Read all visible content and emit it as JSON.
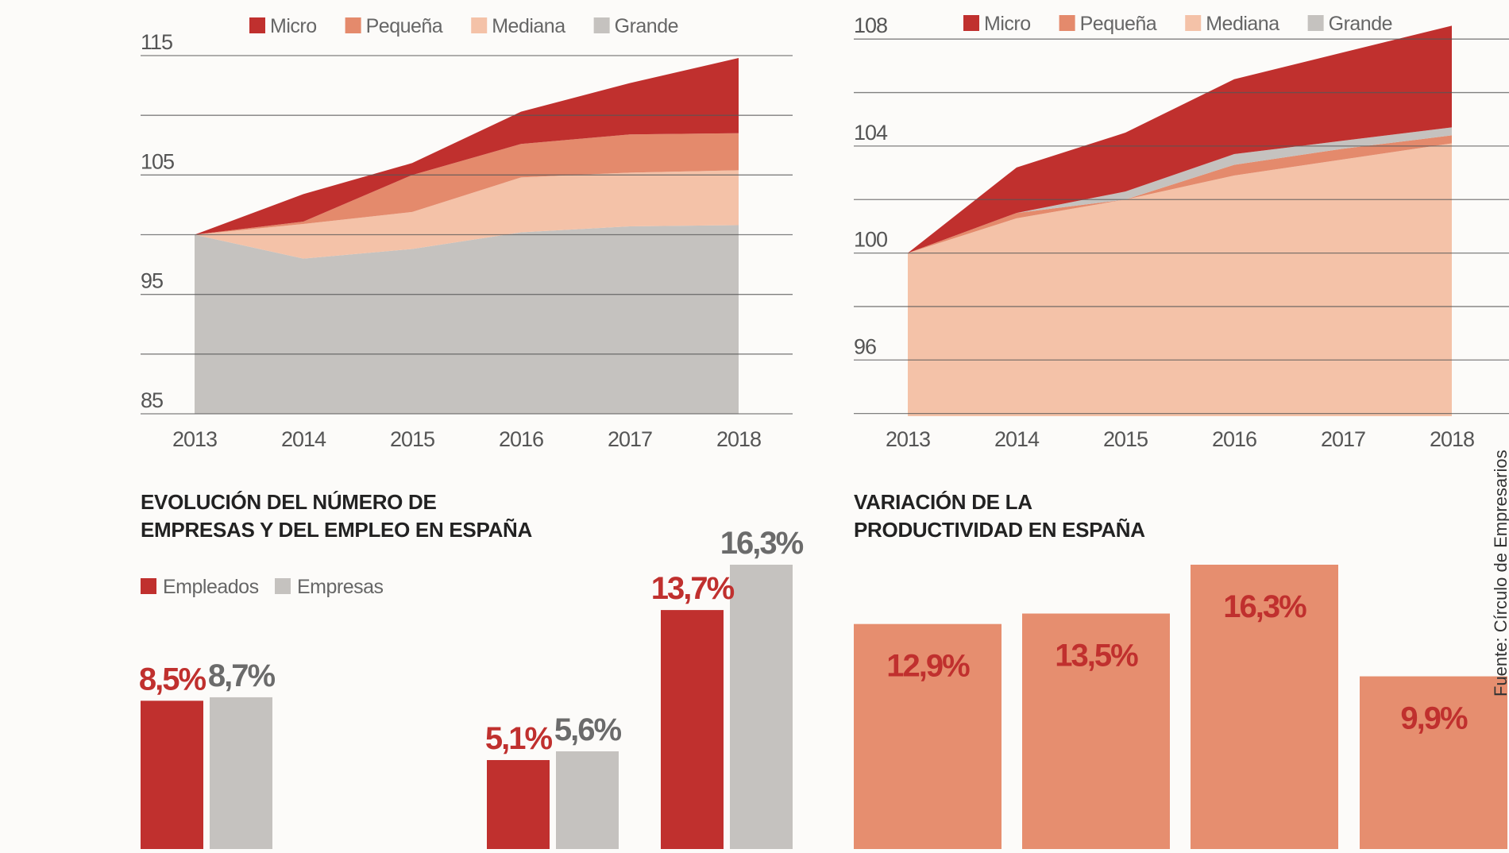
{
  "colors": {
    "micro": "#c0302e",
    "pequena": "#e48a6c",
    "mediana": "#f4c2a8",
    "grande": "#c5c2bf",
    "empleados": "#c0302e",
    "empresas": "#c5c2bf",
    "productividad": "#e68e6f",
    "label_empleados": "#c0302e",
    "label_empresas": "#6b6b6b",
    "label_productividad": "#c0302e",
    "grid": "#555555"
  },
  "source": "Fuente: Círculo de Empresarios",
  "chart_data": [
    {
      "id": "chart-a",
      "type": "area",
      "stacked": true,
      "x": [
        "2013",
        "2014",
        "2015",
        "2016",
        "2017",
        "2018"
      ],
      "ylim": [
        85,
        115
      ],
      "yticks": [
        "85",
        "95",
        "105",
        "115"
      ],
      "gridlines": [
        85,
        90,
        95,
        100,
        105,
        110,
        115
      ],
      "legend": [
        "Micro",
        "Pequeña",
        "Mediana",
        "Grande"
      ],
      "series": [
        {
          "name": "Grande",
          "values": [
            100,
            98,
            98.8,
            100.2,
            100.7,
            100.8
          ]
        },
        {
          "name": "Mediana",
          "values": [
            100,
            100.9,
            101.9,
            104.8,
            105.2,
            105.4
          ]
        },
        {
          "name": "Pequeña",
          "values": [
            100,
            101.1,
            105.0,
            107.6,
            108.4,
            108.5
          ]
        },
        {
          "name": "Micro",
          "values": [
            100,
            103.4,
            106.0,
            110.3,
            112.7,
            114.8
          ]
        }
      ]
    },
    {
      "id": "chart-b",
      "type": "area",
      "stacked": true,
      "x": [
        "2013",
        "2014",
        "2015",
        "2016",
        "2017",
        "2018"
      ],
      "ylim": [
        93.9,
        108.6
      ],
      "yticks": [
        "96",
        "100",
        "104",
        "108"
      ],
      "gridlines": [
        94,
        96,
        98,
        100,
        102,
        104,
        106,
        108
      ],
      "legend": [
        "Micro",
        "Pequeña",
        "Mediana",
        "Grande"
      ],
      "series": [
        {
          "name": "Mediana",
          "values": [
            100,
            101.3,
            102.0,
            102.9,
            103.5,
            104.1
          ]
        },
        {
          "name": "Pequeña",
          "values": [
            100,
            101.5,
            102.0,
            103.3,
            103.9,
            104.4
          ]
        },
        {
          "name": "Grande",
          "values": [
            100,
            101.5,
            102.3,
            103.7,
            104.2,
            104.7
          ]
        },
        {
          "name": "Micro",
          "values": [
            100,
            103.2,
            104.5,
            106.5,
            107.5,
            108.5
          ]
        }
      ]
    },
    {
      "id": "chart-c",
      "type": "bar",
      "title": [
        "EVOLUCIÓN DEL NÚMERO DE",
        "EMPRESAS Y DEL EMPLEO EN ESPAÑA"
      ],
      "legend": [
        "Empleados",
        "Empresas"
      ],
      "ylim": [
        0,
        16.3
      ],
      "groups": [
        {
          "empleados": {
            "value": 8.5,
            "label": "8,5%"
          },
          "empresas": {
            "value": 8.7,
            "label": "8,7%"
          }
        },
        {
          "empleados": {
            "value": 5.1,
            "label": "5,1%"
          },
          "empresas": {
            "value": 5.6,
            "label": "5,6%"
          }
        },
        {
          "empleados": {
            "value": 13.7,
            "label": "13,7%"
          },
          "empresas": {
            "value": 16.3,
            "label": "16,3%"
          }
        }
      ]
    },
    {
      "id": "chart-d",
      "type": "bar",
      "title": [
        "VARIACIÓN DE LA",
        "PRODUCTIVIDAD EN ESPAÑA"
      ],
      "ylim": [
        0,
        16.3
      ],
      "bars": [
        {
          "value": 12.9,
          "label": "12,9%"
        },
        {
          "value": 13.5,
          "label": "13,5%"
        },
        {
          "value": 16.3,
          "label": "16,3%"
        },
        {
          "value": 9.9,
          "label": "9,9%"
        }
      ]
    }
  ]
}
